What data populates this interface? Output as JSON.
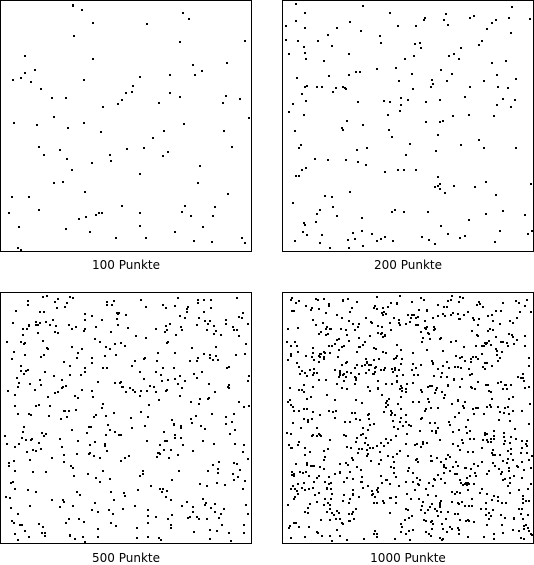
{
  "chart_data": [
    {
      "type": "scatter",
      "caption": "100 Punkte",
      "point_count": 100,
      "xlim": [
        0,
        1
      ],
      "ylim": [
        0,
        1
      ],
      "seed": 11,
      "point_color": "#000000"
    },
    {
      "type": "scatter",
      "caption": "200 Punkte",
      "point_count": 200,
      "xlim": [
        0,
        1
      ],
      "ylim": [
        0,
        1
      ],
      "seed": 23,
      "point_color": "#000000"
    },
    {
      "type": "scatter",
      "caption": "500 Punkte",
      "point_count": 500,
      "xlim": [
        0,
        1
      ],
      "ylim": [
        0,
        1
      ],
      "seed": 37,
      "point_color": "#000000"
    },
    {
      "type": "scatter",
      "caption": "1000 Punkte",
      "point_count": 1000,
      "xlim": [
        0,
        1
      ],
      "ylim": [
        0,
        1
      ],
      "seed": 53,
      "point_color": "#000000"
    }
  ]
}
